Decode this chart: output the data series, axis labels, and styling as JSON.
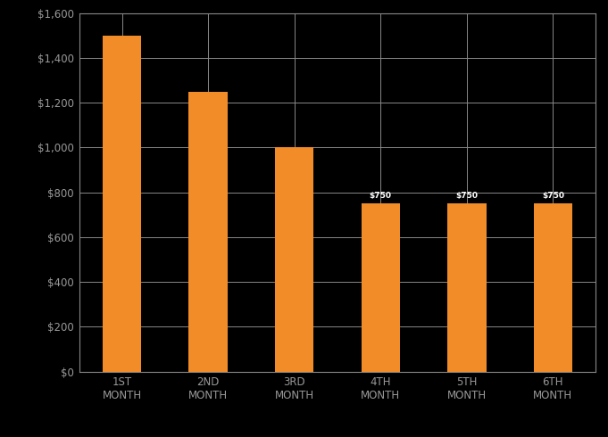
{
  "categories": [
    "1ST\nMONTH",
    "2ND\nMONTH",
    "3RD\nMONTH",
    "4TH\nMONTH",
    "5TH\nMONTH",
    "6TH\nMONTH"
  ],
  "values": [
    1500,
    1250,
    1000,
    750,
    750,
    750
  ],
  "bar_color": "#F28C28",
  "background_color": "#000000",
  "grid_color": "#888888",
  "text_color": "#999999",
  "bar_labels": [
    null,
    null,
    null,
    "$750",
    "$750",
    "$750"
  ],
  "bar_label_color": "#FFFFFF",
  "ylim": [
    0,
    1600
  ],
  "yticks": [
    0,
    200,
    400,
    600,
    800,
    1000,
    1200,
    1400,
    1600
  ],
  "ytick_labels": [
    "$0",
    "$200",
    "$400",
    "$600",
    "$800",
    "$1,000",
    "$1,200",
    "$1,400",
    "$1,600"
  ],
  "bar_width": 0.45,
  "figsize": [
    6.81,
    4.9
  ],
  "dpi": 100
}
